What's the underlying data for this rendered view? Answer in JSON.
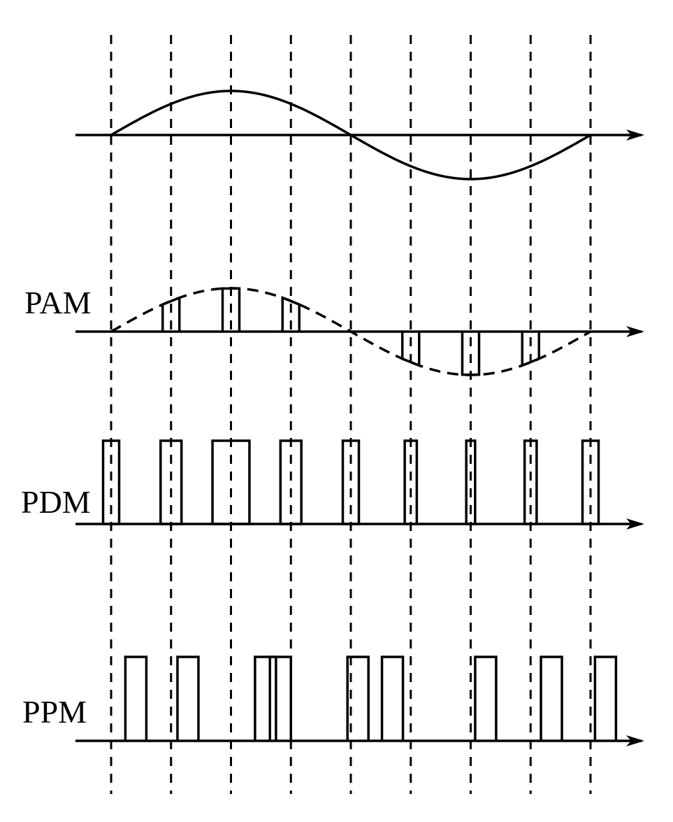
{
  "labels": {
    "pam": "PAM",
    "pdm": "PDM",
    "ppm": "PPM"
  },
  "colors": {
    "stroke": "#000000",
    "background": "#ffffff"
  },
  "sample_count": 9,
  "signal": {
    "shape": "one full sine period",
    "sample_phases_deg": [
      0,
      45,
      90,
      135,
      180,
      225,
      270,
      315,
      360
    ]
  },
  "pam": {
    "amplitudes": [
      0,
      0.707,
      1,
      0.707,
      0,
      -0.707,
      -1,
      -0.707,
      0
    ]
  },
  "pdm": {
    "relative_widths": [
      1.0,
      1.3,
      2.3,
      1.3,
      1.0,
      0.75,
      0.55,
      0.75,
      1.0
    ]
  },
  "ppm": {
    "relative_delays": [
      1.8,
      1.4,
      2.3,
      0.0,
      0.9,
      -0.4,
      1.3,
      1.6,
      1.3
    ]
  }
}
